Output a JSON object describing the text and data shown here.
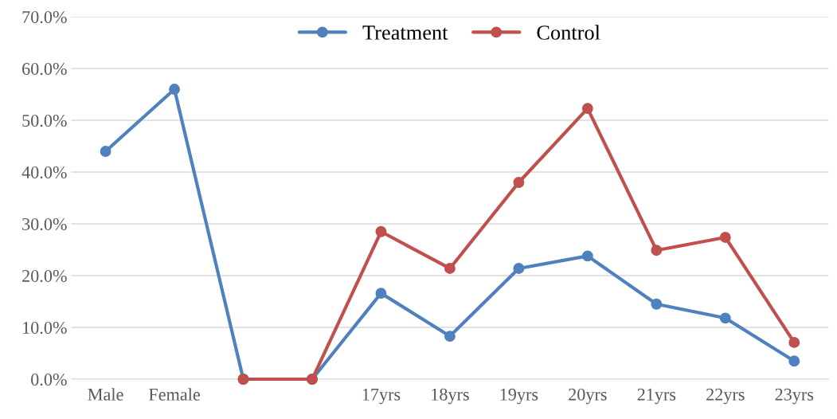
{
  "chart_data": {
    "type": "line",
    "categories": [
      "Male",
      "Female",
      null,
      null,
      "17yrs",
      "18yrs",
      "19yrs",
      "20yrs",
      "21yrs",
      "22yrs",
      "23yrs"
    ],
    "series": [
      {
        "name": "Treatment",
        "color": "#4f81bd",
        "values": [
          44.0,
          56.0,
          0,
          0,
          16.6,
          8.3,
          21.4,
          23.8,
          14.5,
          11.8,
          3.5
        ]
      },
      {
        "name": "Control",
        "color": "#c0504d",
        "values": [
          null,
          null,
          0,
          0,
          28.5,
          21.4,
          38.0,
          52.3,
          24.9,
          27.4,
          7.1
        ]
      }
    ],
    "ylim": [
      0,
      70
    ],
    "yticks": [
      {
        "value": 0,
        "label": "0.0%"
      },
      {
        "value": 10,
        "label": "10.0%"
      },
      {
        "value": 20,
        "label": "20.0%"
      },
      {
        "value": 30,
        "label": "30.0%"
      },
      {
        "value": 40,
        "label": "40.0%"
      },
      {
        "value": 50,
        "label": "50.0%"
      },
      {
        "value": 60,
        "label": "60.0%"
      },
      {
        "value": 70,
        "label": "70.0%"
      }
    ],
    "grid": "y",
    "legend": "top",
    "marker": "circle",
    "line_style": "solid"
  }
}
